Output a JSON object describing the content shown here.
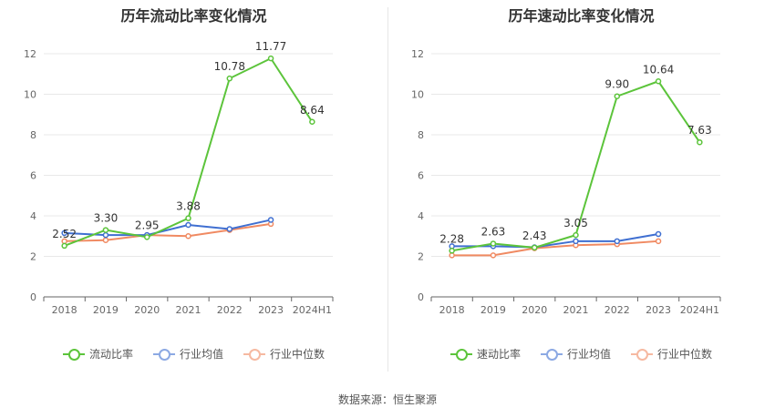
{
  "source_text": "数据来源：恒生聚源",
  "chart_data": [
    {
      "type": "line",
      "title": "历年流动比率变化情况",
      "categories": [
        "2018",
        "2019",
        "2020",
        "2021",
        "2022",
        "2023",
        "2024H1"
      ],
      "ylim": [
        0,
        12
      ],
      "yticks": [
        0,
        2,
        4,
        6,
        8,
        10,
        12
      ],
      "grid": true,
      "legend_position": "bottom",
      "series": [
        {
          "name": "流动比率",
          "color": "#5cc43b",
          "labeled": true,
          "values": [
            2.52,
            3.3,
            2.95,
            3.88,
            10.78,
            11.77,
            8.64
          ],
          "labels": [
            "2.52",
            "3.30",
            "2.95",
            "3.88",
            "10.78",
            "11.77",
            "8.64"
          ]
        },
        {
          "name": "行业均值",
          "color": "#3f6fd1",
          "labeled": false,
          "values": [
            3.15,
            3.05,
            3.05,
            3.55,
            3.35,
            3.8,
            null
          ]
        },
        {
          "name": "行业中位数",
          "color": "#f08a62",
          "labeled": false,
          "values": [
            2.75,
            2.8,
            3.05,
            3.0,
            3.3,
            3.6,
            null
          ]
        }
      ]
    },
    {
      "type": "line",
      "title": "历年速动比率变化情况",
      "categories": [
        "2018",
        "2019",
        "2020",
        "2021",
        "2022",
        "2023",
        "2024H1"
      ],
      "ylim": [
        0,
        12
      ],
      "yticks": [
        0,
        2,
        4,
        6,
        8,
        10,
        12
      ],
      "grid": true,
      "legend_position": "bottom",
      "series": [
        {
          "name": "速动比率",
          "color": "#5cc43b",
          "labeled": true,
          "values": [
            2.28,
            2.63,
            2.43,
            3.05,
            9.9,
            10.64,
            7.63
          ],
          "labels": [
            "2.28",
            "2.63",
            "2.43",
            "3.05",
            "9.90",
            "10.64",
            "7.63"
          ]
        },
        {
          "name": "行业均值",
          "color": "#3f6fd1",
          "labeled": false,
          "values": [
            2.5,
            2.5,
            2.45,
            2.75,
            2.75,
            3.1,
            null
          ]
        },
        {
          "name": "行业中位数",
          "color": "#f08a62",
          "labeled": false,
          "values": [
            2.05,
            2.05,
            2.4,
            2.55,
            2.6,
            2.75,
            null
          ]
        }
      ]
    }
  ]
}
